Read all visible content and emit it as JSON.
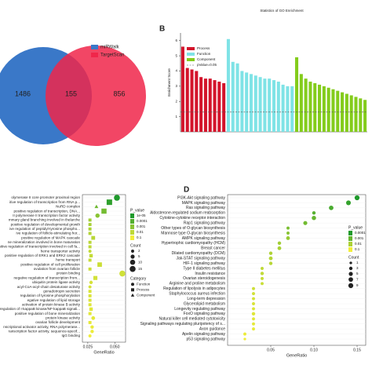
{
  "chart_data": [
    {
      "type": "venn",
      "sets": [
        {
          "name": "miRWalk",
          "color": "#3a78c8"
        },
        {
          "name": "TargetScan",
          "color": "#f0264a"
        }
      ],
      "values": [
        1486,
        155,
        856
      ]
    },
    {
      "type": "bar",
      "label": "B",
      "title": "Statistics of GO Enrichment",
      "y_label": "Enrichment Score",
      "ylim": [
        0,
        6.5
      ],
      "yticks": [
        1,
        2,
        3,
        4,
        5,
        6
      ],
      "series": [
        {
          "name": "Process",
          "color": "#d3142b",
          "values": [
            5.6,
            4.2,
            4.1,
            4.0,
            3.6,
            3.5,
            3.5,
            3.4,
            3.3,
            3.2
          ]
        },
        {
          "name": "Function",
          "color": "#7fe3e6",
          "values": [
            6.1,
            4.6,
            4.5,
            4.0,
            3.9,
            3.8,
            3.7,
            3.6,
            3.5,
            3.5,
            3.4,
            3.3,
            3.1,
            3.0,
            3.0
          ]
        },
        {
          "name": "Component",
          "color": "#84cc1c",
          "values": [
            4.9,
            3.8,
            3.5,
            3.3,
            3.2,
            3.1,
            3.0,
            2.9,
            2.8,
            2.7,
            2.6,
            2.5,
            2.4,
            2.3,
            2.2,
            2.1
          ]
        }
      ],
      "threshold": {
        "name": "pValue=0.05",
        "value": 1.3,
        "color": "#555555"
      }
    },
    {
      "type": "dot",
      "x_label": "GeneRatio",
      "xlim": [
        0.02,
        0.06
      ],
      "xticks": [
        0.025,
        {
          "value": 0.05,
          "label": "0.050"
        }
      ],
      "plim": [
        1e-05,
        0.1
      ],
      "color_low": "#1f9a2c",
      "color_high": "#f2ee3a",
      "legend": {
        "color_title": "P_value",
        "color_ticks": [
          {
            "value": 1e-05,
            "label": "1e-05"
          },
          0.0001,
          0.001,
          0.01,
          0.1
        ],
        "size_title": "Count",
        "size_ticks": [
          2,
          5,
          10,
          15
        ],
        "shape_title": "Category",
        "shapes": [
          "Function",
          "Process",
          "Component"
        ]
      },
      "rows": [
        {
          "label": "olymerase II core promoter proximal region",
          "ratio": 0.052,
          "p_value": 1e-05,
          "count": 15,
          "category": "Function"
        },
        {
          "label": "itive regulation of transcription from RNA p...",
          "ratio": 0.045,
          "p_value": 2e-05,
          "count": 12,
          "category": "Process"
        },
        {
          "label": "NuRD complex",
          "ratio": 0.033,
          "p_value": 0.0003,
          "count": 3,
          "category": "Component"
        },
        {
          "label": "positive regulation of transcription, DNA...",
          "ratio": 0.04,
          "p_value": 0.0004,
          "count": 10,
          "category": "Process"
        },
        {
          "label": "II polymerase II transcription factor activity",
          "ratio": 0.034,
          "p_value": 0.001,
          "count": 6,
          "category": "Function"
        },
        {
          "label": "mmary gland branching involved in thelarche",
          "ratio": 0.027,
          "p_value": 0.003,
          "count": 2,
          "category": "Process"
        },
        {
          "label": "positive regulation of developmental growth",
          "ratio": 0.027,
          "p_value": 0.004,
          "count": 2,
          "category": "Process"
        },
        {
          "label": "ive regulation of peptidyl-tyrosine phospho...",
          "ratio": 0.027,
          "p_value": 0.005,
          "count": 2,
          "category": "Process"
        },
        {
          "label": "ive regulation of follicle-stimulating hor...",
          "ratio": 0.027,
          "p_value": 0.006,
          "count": 2,
          "category": "Process"
        },
        {
          "label": "positive regulation of MAPK cascade",
          "ratio": 0.03,
          "p_value": 0.008,
          "count": 4,
          "category": "Process"
        },
        {
          "label": "ne mineralization involved in bone maturation",
          "ratio": 0.027,
          "p_value": 0.009,
          "count": 2,
          "category": "Process"
        },
        {
          "label": "sitive regulation of transcription involved in cell fa...",
          "ratio": 0.027,
          "p_value": 0.01,
          "count": 2,
          "category": "Process"
        },
        {
          "label": "heme transporter activity",
          "ratio": 0.027,
          "p_value": 0.012,
          "count": 2,
          "category": "Function"
        },
        {
          "label": "positive regulation of ERK1 and ERK2 cascade",
          "ratio": 0.028,
          "p_value": 0.013,
          "count": 3,
          "category": "Process"
        },
        {
          "label": "heme transport",
          "ratio": 0.027,
          "p_value": 0.015,
          "count": 2,
          "category": "Process"
        },
        {
          "label": "positive regulation of cell proliferation",
          "ratio": 0.036,
          "p_value": 0.018,
          "count": 7,
          "category": "Process"
        },
        {
          "label": "ovulation from ovarian follicle",
          "ratio": 0.027,
          "p_value": 0.02,
          "count": 2,
          "category": "Process"
        },
        {
          "label": "protein binding",
          "ratio": 0.057,
          "p_value": 0.022,
          "count": 15,
          "category": "Function"
        },
        {
          "label": "negative regulation of transcription from...",
          "ratio": 0.032,
          "p_value": 0.025,
          "count": 5,
          "category": "Process"
        },
        {
          "label": "ubiquitin protein ligase activity",
          "ratio": 0.028,
          "p_value": 0.028,
          "count": 3,
          "category": "Function"
        },
        {
          "label": "acyl-CoA-acyl-chain desaturase activity",
          "ratio": 0.027,
          "p_value": 0.03,
          "count": 2,
          "category": "Function"
        },
        {
          "label": "gonadotropin secretion",
          "ratio": 0.027,
          "p_value": 0.032,
          "count": 2,
          "category": "Process"
        },
        {
          "label": "regulation of tyrosine phosphorylation",
          "ratio": 0.027,
          "p_value": 0.035,
          "count": 2,
          "category": "Process"
        },
        {
          "label": "egative regulation of lipid storage",
          "ratio": 0.027,
          "p_value": 0.038,
          "count": 2,
          "category": "Process"
        },
        {
          "label": "activation of protein kinase B activity",
          "ratio": 0.027,
          "p_value": 0.04,
          "count": 2,
          "category": "Process"
        },
        {
          "label": "ositive regulation of I-kappaB kinase/NF-kappaB signali...",
          "ratio": 0.028,
          "p_value": 0.045,
          "count": 3,
          "category": "Process"
        },
        {
          "label": "positive regulation of bone mineralization",
          "ratio": 0.027,
          "p_value": 0.05,
          "count": 2,
          "category": "Process"
        },
        {
          "label": "protein kinase activity",
          "ratio": 0.03,
          "p_value": 0.055,
          "count": 4,
          "category": "Function"
        },
        {
          "label": "ovarian follicle development",
          "ratio": 0.027,
          "p_value": 0.06,
          "count": 2,
          "category": "Process"
        },
        {
          "label": "nscriptional activator activity, RNA polymerase...",
          "ratio": 0.029,
          "p_value": 0.07,
          "count": 3,
          "category": "Function"
        },
        {
          "label": "ranscription factor activity, sequence-specif...",
          "ratio": 0.029,
          "p_value": 0.08,
          "count": 3,
          "category": "Function"
        },
        {
          "label": "IgG binding",
          "ratio": 0.027,
          "p_value": 0.09,
          "count": 2,
          "category": "Function"
        }
      ]
    },
    {
      "type": "dot",
      "label": "D",
      "x_label": "GeneRatio",
      "xlim": [
        0,
        0.16
      ],
      "xticks": [
        0.05,
        {
          "value": 0.1,
          "label": "0.10"
        },
        0.15
      ],
      "plim": [
        0.0001,
        0.1
      ],
      "color_low": "#1f9a2c",
      "color_high": "#f2ee3a",
      "legend": {
        "color_title": "P_value",
        "color_ticks": [
          0.0001,
          0.001,
          0.01,
          0.1
        ],
        "size_title": "Count",
        "size_ticks": [
          1,
          3,
          5,
          7,
          9
        ]
      },
      "rows": [
        {
          "label": "PI3K-Akt signaling pathway",
          "ratio": 0.15,
          "p_value": 0.0001,
          "count": 9
        },
        {
          "label": "MAPK signaling pathway",
          "ratio": 0.14,
          "p_value": 0.0002,
          "count": 8
        },
        {
          "label": "Ras signaling pathway",
          "ratio": 0.12,
          "p_value": 0.0004,
          "count": 7
        },
        {
          "label": "Aldosterone-regulated sodium reabsorption",
          "ratio": 0.1,
          "p_value": 0.0006,
          "count": 3
        },
        {
          "label": "Cytokine-cytokine receptor interaction",
          "ratio": 0.1,
          "p_value": 0.001,
          "count": 6
        },
        {
          "label": "Rap1 signaling pathway",
          "ratio": 0.09,
          "p_value": 0.0015,
          "count": 5
        },
        {
          "label": "Other types of O-glycan biosynthesis",
          "ratio": 0.07,
          "p_value": 0.002,
          "count": 2
        },
        {
          "label": "Mannose type O-glycan biosynthesis",
          "ratio": 0.07,
          "p_value": 0.003,
          "count": 2
        },
        {
          "label": "AMPK signaling pathway",
          "ratio": 0.07,
          "p_value": 0.005,
          "count": 4
        },
        {
          "label": "Hypertrophic cardiomyopathy (HCM)",
          "ratio": 0.06,
          "p_value": 0.007,
          "count": 3
        },
        {
          "label": "Breast cancer",
          "ratio": 0.06,
          "p_value": 0.009,
          "count": 4
        },
        {
          "label": "Dilated cardiomyopathy (DCM)",
          "ratio": 0.05,
          "p_value": 0.011,
          "count": 3
        },
        {
          "label": "Jak-STAT signaling pathway",
          "ratio": 0.05,
          "p_value": 0.013,
          "count": 4
        },
        {
          "label": "HIF-1 signaling pathway",
          "ratio": 0.05,
          "p_value": 0.015,
          "count": 3
        },
        {
          "label": "Type II diabetes mellitus",
          "ratio": 0.04,
          "p_value": 0.018,
          "count": 2
        },
        {
          "label": "Insulin resistance",
          "ratio": 0.04,
          "p_value": 0.02,
          "count": 3
        },
        {
          "label": "Ovarian steroidogenesis",
          "ratio": 0.04,
          "p_value": 0.023,
          "count": 2
        },
        {
          "label": "Arginine and proline metabolism",
          "ratio": 0.04,
          "p_value": 0.026,
          "count": 2
        },
        {
          "label": "Regulation of lipolysis in adipocytes",
          "ratio": 0.03,
          "p_value": 0.03,
          "count": 2
        },
        {
          "label": "Staphylococcus aureus infection",
          "ratio": 0.03,
          "p_value": 0.034,
          "count": 2
        },
        {
          "label": "Long-term depression",
          "ratio": 0.03,
          "p_value": 0.038,
          "count": 2
        },
        {
          "label": "Glycerolipid metabolism",
          "ratio": 0.03,
          "p_value": 0.042,
          "count": 2
        },
        {
          "label": "Longevity regulating pathway",
          "ratio": 0.03,
          "p_value": 0.047,
          "count": 2
        },
        {
          "label": "FoxO signaling pathway",
          "ratio": 0.03,
          "p_value": 0.052,
          "count": 3
        },
        {
          "label": "Natural killer cell mediated cytotoxicity",
          "ratio": 0.03,
          "p_value": 0.058,
          "count": 2
        },
        {
          "label": "Signaling pathways regulating pluripotency of s...",
          "ratio": 0.03,
          "p_value": 0.064,
          "count": 2
        },
        {
          "label": "Axon guidance",
          "ratio": 0.03,
          "p_value": 0.07,
          "count": 2
        },
        {
          "label": "Apelin signaling pathway",
          "ratio": 0.02,
          "p_value": 0.08,
          "count": 2
        },
        {
          "label": "p53 signaling pathway",
          "ratio": 0.02,
          "p_value": 0.09,
          "count": 1
        }
      ]
    }
  ]
}
